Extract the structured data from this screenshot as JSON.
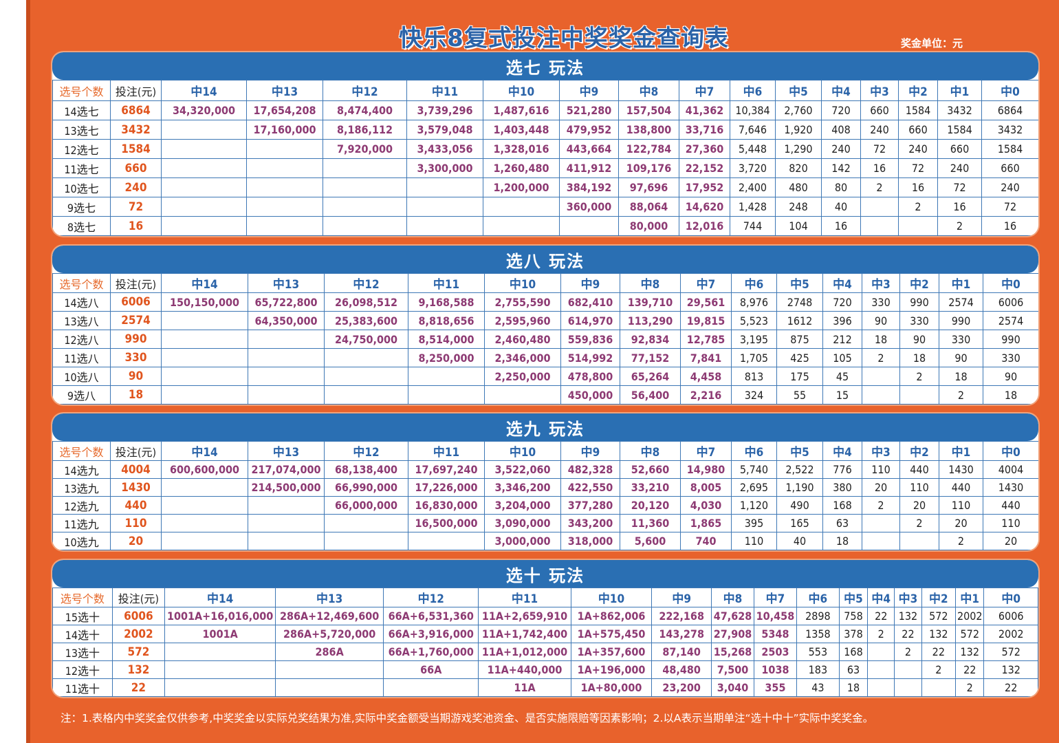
{
  "title": "快乐8复式投注中奖奖金查询表",
  "unit": "奖金单位：元",
  "footnote": "注：1.表格内中奖奖金仅供参考,中奖奖金以实际兑奖结果为准,实际中奖金额受当期游戏奖池资金、是否实施限赔等因素影响；2.以A表示当期单注“选十中十”实际中奖奖金。",
  "sections": [
    {
      "title": "选七 玩法",
      "headers": [
        "选号个数",
        "投注(元)",
        "中14",
        "中13",
        "中12",
        "中11",
        "中10",
        "中9",
        "中8",
        "中7",
        "中6",
        "中5",
        "中4",
        "中3",
        "中2",
        "中1",
        "中0"
      ],
      "rows": [
        {
          "label": "14选七",
          "bet": "6864",
          "cells": [
            "34,320,000",
            "17,654,208",
            "8,474,400",
            "3,739,296",
            "1,487,616",
            "521,280",
            "157,504",
            "41,362",
            "10,384",
            "2,760",
            "720",
            "660",
            "1584",
            "3432",
            "6864"
          ]
        },
        {
          "label": "13选七",
          "bet": "3432",
          "cells": [
            "",
            "17,160,000",
            "8,186,112",
            "3,579,048",
            "1,403,448",
            "479,952",
            "138,800",
            "33,716",
            "7,646",
            "1,920",
            "408",
            "240",
            "660",
            "1584",
            "3432"
          ]
        },
        {
          "label": "12选七",
          "bet": "1584",
          "cells": [
            "",
            "",
            "7,920,000",
            "3,433,056",
            "1,328,016",
            "443,664",
            "122,784",
            "27,360",
            "5,448",
            "1,290",
            "240",
            "72",
            "240",
            "660",
            "1584"
          ]
        },
        {
          "label": "11选七",
          "bet": "660",
          "cells": [
            "",
            "",
            "",
            "3,300,000",
            "1,260,480",
            "411,912",
            "109,176",
            "22,152",
            "3,720",
            "820",
            "142",
            "16",
            "72",
            "240",
            "660"
          ]
        },
        {
          "label": "10选七",
          "bet": "240",
          "cells": [
            "",
            "",
            "",
            "",
            "1,200,000",
            "384,192",
            "97,696",
            "17,952",
            "2,400",
            "480",
            "80",
            "2",
            "16",
            "72",
            "240"
          ]
        },
        {
          "label": "9选七",
          "bet": "72",
          "cells": [
            "",
            "",
            "",
            "",
            "",
            "360,000",
            "88,064",
            "14,620",
            "1,428",
            "248",
            "40",
            "",
            "2",
            "16",
            "72"
          ]
        },
        {
          "label": "8选七",
          "bet": "16",
          "cells": [
            "",
            "",
            "",
            "",
            "",
            "",
            "80,000",
            "12,016",
            "744",
            "104",
            "16",
            "",
            "",
            "2",
            "16"
          ]
        }
      ]
    },
    {
      "title": "选八 玩法",
      "headers": [
        "选号个数",
        "投注(元)",
        "中14",
        "中13",
        "中12",
        "中11",
        "中10",
        "中9",
        "中8",
        "中7",
        "中6",
        "中5",
        "中4",
        "中3",
        "中2",
        "中1",
        "中0"
      ],
      "rows": [
        {
          "label": "14选八",
          "bet": "6006",
          "cells": [
            "150,150,000",
            "65,722,800",
            "26,098,512",
            "9,168,588",
            "2,755,590",
            "682,410",
            "139,710",
            "29,561",
            "8,976",
            "2748",
            "720",
            "330",
            "990",
            "2574",
            "6006"
          ]
        },
        {
          "label": "13选八",
          "bet": "2574",
          "cells": [
            "",
            "64,350,000",
            "25,383,600",
            "8,818,656",
            "2,595,960",
            "614,970",
            "113,290",
            "19,815",
            "5,523",
            "1612",
            "396",
            "90",
            "330",
            "990",
            "2574"
          ]
        },
        {
          "label": "12选八",
          "bet": "990",
          "cells": [
            "",
            "",
            "24,750,000",
            "8,514,000",
            "2,460,480",
            "559,836",
            "92,834",
            "12,785",
            "3,195",
            "875",
            "212",
            "18",
            "90",
            "330",
            "990"
          ]
        },
        {
          "label": "11选八",
          "bet": "330",
          "cells": [
            "",
            "",
            "",
            "8,250,000",
            "2,346,000",
            "514,992",
            "77,152",
            "7,841",
            "1,705",
            "425",
            "105",
            "2",
            "18",
            "90",
            "330"
          ]
        },
        {
          "label": "10选八",
          "bet": "90",
          "cells": [
            "",
            "",
            "",
            "",
            "2,250,000",
            "478,800",
            "65,264",
            "4,458",
            "813",
            "175",
            "45",
            "",
            "2",
            "18",
            "90"
          ]
        },
        {
          "label": "9选八",
          "bet": "18",
          "cells": [
            "",
            "",
            "",
            "",
            "",
            "450,000",
            "56,400",
            "2,216",
            "324",
            "55",
            "15",
            "",
            "",
            "2",
            "18"
          ]
        }
      ]
    },
    {
      "title": "选九 玩法",
      "headers": [
        "选号个数",
        "投注(元)",
        "中14",
        "中13",
        "中12",
        "中11",
        "中10",
        "中9",
        "中8",
        "中7",
        "中6",
        "中5",
        "中4",
        "中3",
        "中2",
        "中1",
        "中0"
      ],
      "rows": [
        {
          "label": "14选九",
          "bet": "4004",
          "cells": [
            "600,600,000",
            "217,074,000",
            "68,138,400",
            "17,697,240",
            "3,522,060",
            "482,328",
            "52,660",
            "14,980",
            "5,740",
            "2,522",
            "776",
            "110",
            "440",
            "1430",
            "4004"
          ]
        },
        {
          "label": "13选九",
          "bet": "1430",
          "cells": [
            "",
            "214,500,000",
            "66,990,000",
            "17,226,000",
            "3,346,200",
            "422,550",
            "33,210",
            "8,005",
            "2,695",
            "1,190",
            "380",
            "20",
            "110",
            "440",
            "1430"
          ]
        },
        {
          "label": "12选九",
          "bet": "440",
          "cells": [
            "",
            "",
            "66,000,000",
            "16,830,000",
            "3,204,000",
            "377,280",
            "20,120",
            "4,030",
            "1,120",
            "490",
            "168",
            "2",
            "20",
            "110",
            "440"
          ]
        },
        {
          "label": "11选九",
          "bet": "110",
          "cells": [
            "",
            "",
            "",
            "16,500,000",
            "3,090,000",
            "343,200",
            "11,360",
            "1,865",
            "395",
            "165",
            "63",
            "",
            "2",
            "20",
            "110"
          ]
        },
        {
          "label": "10选九",
          "bet": "20",
          "cells": [
            "",
            "",
            "",
            "",
            "3,000,000",
            "318,000",
            "5,600",
            "740",
            "110",
            "40",
            "18",
            "",
            "",
            "2",
            "20"
          ]
        }
      ]
    },
    {
      "title": "选十 玩法",
      "headers": [
        "选号个数",
        "投注(元)",
        "中14",
        "中13",
        "中12",
        "中11",
        "中10",
        "中9",
        "中8",
        "中7",
        "中6",
        "中5",
        "中4",
        "中3",
        "中2",
        "中1",
        "中0"
      ],
      "rows": [
        {
          "label": "15选十",
          "bet": "6006",
          "cells": [
            "1001A+16,016,000",
            "286A+12,469,600",
            "66A+6,531,360",
            "11A+2,659,910",
            "1A+862,006",
            "222,168",
            "47,628",
            "10,458",
            "2898",
            "758",
            "22",
            "132",
            "572",
            "2002",
            "6006"
          ]
        },
        {
          "label": "14选十",
          "bet": "2002",
          "cells": [
            "1001A",
            "286A+5,720,000",
            "66A+3,916,000",
            "11A+1,742,400",
            "1A+575,450",
            "143,278",
            "27,908",
            "5348",
            "1358",
            "378",
            "2",
            "22",
            "132",
            "572",
            "2002"
          ]
        },
        {
          "label": "13选十",
          "bet": "572",
          "cells": [
            "",
            "286A",
            "66A+1,760,000",
            "11A+1,012,000",
            "1A+357,600",
            "87,140",
            "15,268",
            "2503",
            "553",
            "168",
            "",
            "2",
            "22",
            "132",
            "572"
          ]
        },
        {
          "label": "12选十",
          "bet": "132",
          "cells": [
            "",
            "",
            "66A",
            "11A+440,000",
            "1A+196,000",
            "48,480",
            "7,500",
            "1038",
            "183",
            "63",
            "",
            "",
            "2",
            "22",
            "132"
          ]
        },
        {
          "label": "11选十",
          "bet": "22",
          "cells": [
            "",
            "",
            "",
            "11A",
            "1A+80,000",
            "23,200",
            "3,040",
            "355",
            "43",
            "18",
            "",
            "",
            "",
            "2",
            "22"
          ]
        }
      ]
    }
  ]
}
